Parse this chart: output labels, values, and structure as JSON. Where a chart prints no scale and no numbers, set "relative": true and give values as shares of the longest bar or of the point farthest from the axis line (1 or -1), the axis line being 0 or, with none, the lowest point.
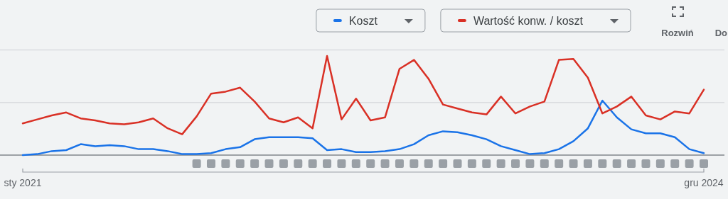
{
  "chart_data": {
    "type": "line",
    "relative": true,
    "ref_lines": [
      {
        "axis": "y",
        "value": 0.53,
        "color": "#dadce0"
      },
      {
        "axis": "y",
        "value": 1.06,
        "color": "#dadce0"
      }
    ],
    "legend": "top right",
    "marker": "none",
    "line_style": "solid",
    "categories": [
      "sty 2021",
      null,
      null,
      null,
      null,
      null,
      null,
      null,
      null,
      null,
      null,
      null,
      null,
      null,
      null,
      null,
      null,
      null,
      null,
      null,
      null,
      null,
      null,
      null,
      null,
      null,
      null,
      null,
      null,
      null,
      null,
      null,
      null,
      null,
      null,
      null,
      null,
      null,
      null,
      null,
      null,
      null,
      null,
      null,
      null,
      null,
      null,
      "gru 2024"
    ],
    "series": [
      {
        "name": "Koszt",
        "color": "#1a73e8",
        "values": [
          0,
          0.01,
          0.04,
          0.05,
          0.11,
          0.09,
          0.1,
          0.09,
          0.06,
          0.06,
          0.04,
          0.01,
          0.01,
          0.02,
          0.06,
          0.08,
          0.16,
          0.18,
          0.18,
          0.18,
          0.17,
          0.05,
          0.06,
          0.03,
          0.03,
          0.04,
          0.06,
          0.11,
          0.2,
          0.24,
          0.23,
          0.2,
          0.16,
          0.09,
          0.05,
          0.01,
          0.02,
          0.06,
          0.14,
          0.27,
          0.55,
          0.38,
          0.26,
          0.22,
          0.22,
          0.18,
          0.06,
          0.02
        ]
      },
      {
        "name": "Wartość konw. / koszt",
        "color": "#d93025",
        "values": [
          0.32,
          0.36,
          0.4,
          0.43,
          0.37,
          0.35,
          0.32,
          0.31,
          0.33,
          0.37,
          0.27,
          0.21,
          0.39,
          0.62,
          0.64,
          0.68,
          0.54,
          0.37,
          0.33,
          0.38,
          0.27,
          1,
          0.36,
          0.57,
          0.35,
          0.38,
          0.87,
          0.96,
          0.77,
          0.51,
          0.47,
          0.43,
          0.41,
          0.59,
          0.42,
          0.49,
          0.54,
          0.96,
          0.97,
          0.78,
          0.42,
          0.49,
          0.59,
          0.4,
          0.36,
          0.44,
          0.42,
          0.66
        ]
      }
    ],
    "annotations": [
      "Rozwiń",
      "Do"
    ]
  }
}
